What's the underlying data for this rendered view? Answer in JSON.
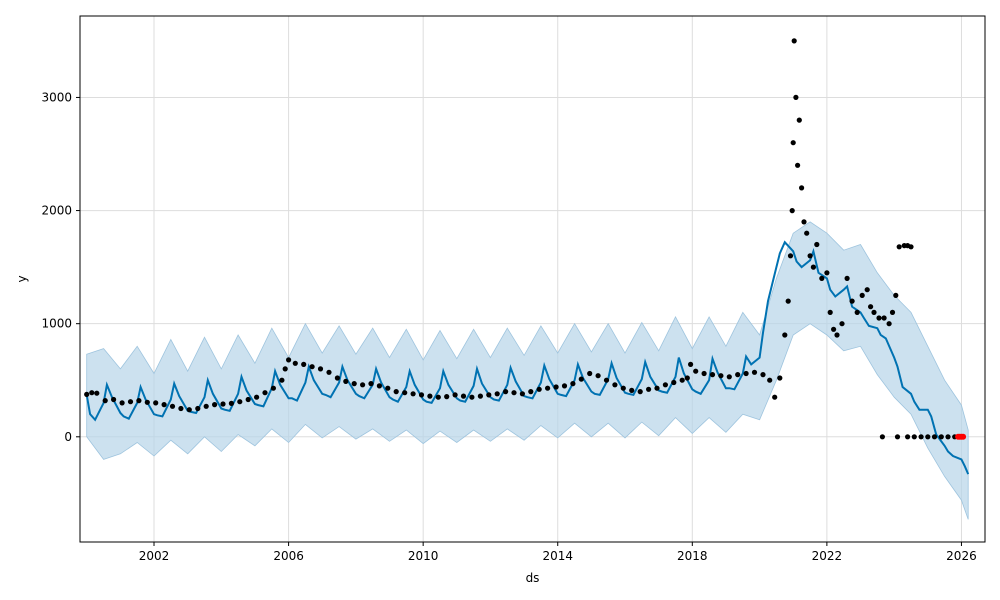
{
  "chart_data": {
    "type": "scatter",
    "title": "",
    "xlabel": "ds",
    "ylabel": "y",
    "xlim": [
      1999.8,
      2026.7
    ],
    "ylim": [
      -930,
      3720
    ],
    "x_ticks": [
      2002,
      2006,
      2010,
      2014,
      2018,
      2022,
      2026
    ],
    "y_ticks": [
      0,
      1000,
      2000,
      3000
    ],
    "grid": true,
    "legend": "none",
    "colors": {
      "observed": "#000000",
      "forecast_line": "#0072B2",
      "interval_fill": "#b6d4e8",
      "interval_edge": "#9ec4de",
      "highlight": "#ff0000",
      "grid": "#dddddd"
    },
    "series": [
      {
        "kind": "observed_points",
        "x": [
          2000.0,
          2000.15,
          2000.3,
          2000.55,
          2000.8,
          2001.05,
          2001.3,
          2001.55,
          2001.8,
          2002.05,
          2002.3,
          2002.55,
          2002.8,
          2003.05,
          2003.3,
          2003.55,
          2003.8,
          2004.05,
          2004.3,
          2004.55,
          2004.8,
          2005.05,
          2005.3,
          2005.55,
          2005.8,
          2005.9,
          2006.0,
          2006.2,
          2006.45,
          2006.7,
          2006.95,
          2007.2,
          2007.45,
          2007.7,
          2007.95,
          2008.2,
          2008.45,
          2008.7,
          2008.95,
          2009.2,
          2009.45,
          2009.7,
          2009.95,
          2010.2,
          2010.45,
          2010.7,
          2010.95,
          2011.2,
          2011.45,
          2011.7,
          2011.95,
          2012.2,
          2012.45,
          2012.7,
          2012.95,
          2013.2,
          2013.45,
          2013.7,
          2013.95,
          2014.2,
          2014.45,
          2014.7,
          2014.95,
          2015.2,
          2015.45,
          2015.7,
          2015.95,
          2016.2,
          2016.45,
          2016.7,
          2016.95,
          2017.2,
          2017.45,
          2017.7,
          2017.85,
          2017.95,
          2018.1,
          2018.35,
          2018.6,
          2018.85,
          2019.1,
          2019.35,
          2019.6,
          2019.85,
          2020.1,
          2020.3,
          2020.45,
          2020.6,
          2020.75,
          2020.85,
          2020.92,
          2020.97,
          2021.0,
          2021.03,
          2021.08,
          2021.13,
          2021.18,
          2021.25,
          2021.32,
          2021.4,
          2021.5,
          2021.6,
          2021.7,
          2021.85,
          2022.0,
          2022.1,
          2022.2,
          2022.3,
          2022.45,
          2022.6,
          2022.75,
          2022.9,
          2023.05,
          2023.2,
          2023.3,
          2023.4,
          2023.55,
          2023.7,
          2023.85,
          2023.95,
          2024.05,
          2024.15,
          2024.3,
          2024.4,
          2024.5,
          2023.65,
          2024.1,
          2024.4,
          2024.6,
          2024.8,
          2025.0,
          2025.2,
          2025.4,
          2025.6,
          2025.8,
          2026.0
        ],
        "y": [
          375,
          390,
          385,
          320,
          330,
          300,
          310,
          320,
          305,
          300,
          285,
          270,
          250,
          240,
          250,
          270,
          285,
          290,
          295,
          310,
          330,
          350,
          390,
          430,
          500,
          600,
          680,
          650,
          640,
          620,
          600,
          570,
          520,
          490,
          470,
          460,
          470,
          450,
          430,
          400,
          390,
          380,
          370,
          360,
          350,
          355,
          370,
          360,
          350,
          360,
          370,
          380,
          400,
          390,
          380,
          400,
          420,
          430,
          440,
          450,
          470,
          510,
          560,
          540,
          500,
          460,
          430,
          410,
          400,
          420,
          430,
          460,
          480,
          500,
          520,
          640,
          580,
          560,
          550,
          540,
          530,
          550,
          560,
          570,
          550,
          500,
          350,
          520,
          900,
          1200,
          1600,
          2000,
          2600,
          3500,
          3000,
          2400,
          2800,
          2200,
          1900,
          1800,
          1600,
          1500,
          1700,
          1400,
          1450,
          1100,
          950,
          900,
          1000,
          1400,
          1200,
          1100,
          1250,
          1300,
          1150,
          1100,
          1050,
          1050,
          1000,
          1100,
          1250,
          1680,
          1690,
          1690,
          1680,
          0,
          0,
          0,
          0,
          0,
          0,
          0,
          0,
          0,
          0,
          0
        ]
      },
      {
        "kind": "forecast_line",
        "x": [
          2000.0,
          2000.1,
          2000.25,
          2000.5,
          2000.6,
          2000.75,
          2001.0,
          2001.1,
          2001.25,
          2001.5,
          2001.6,
          2001.75,
          2002.0,
          2002.1,
          2002.25,
          2002.5,
          2002.6,
          2002.75,
          2003.0,
          2003.1,
          2003.25,
          2003.5,
          2003.6,
          2003.75,
          2004.0,
          2004.1,
          2004.25,
          2004.5,
          2004.6,
          2004.75,
          2005.0,
          2005.1,
          2005.25,
          2005.5,
          2005.6,
          2005.75,
          2006.0,
          2006.1,
          2006.25,
          2006.5,
          2006.6,
          2006.75,
          2007.0,
          2007.1,
          2007.25,
          2007.5,
          2007.6,
          2007.75,
          2008.0,
          2008.1,
          2008.25,
          2008.5,
          2008.6,
          2008.75,
          2009.0,
          2009.1,
          2009.25,
          2009.5,
          2009.6,
          2009.75,
          2010.0,
          2010.1,
          2010.25,
          2010.5,
          2010.6,
          2010.75,
          2011.0,
          2011.1,
          2011.25,
          2011.5,
          2011.6,
          2011.75,
          2012.0,
          2012.1,
          2012.25,
          2012.5,
          2012.6,
          2012.75,
          2013.0,
          2013.1,
          2013.25,
          2013.5,
          2013.6,
          2013.75,
          2014.0,
          2014.1,
          2014.25,
          2014.5,
          2014.6,
          2014.75,
          2015.0,
          2015.1,
          2015.25,
          2015.5,
          2015.6,
          2015.75,
          2016.0,
          2016.1,
          2016.25,
          2016.5,
          2016.6,
          2016.75,
          2017.0,
          2017.1,
          2017.25,
          2017.5,
          2017.6,
          2017.75,
          2018.0,
          2018.1,
          2018.25,
          2018.5,
          2018.6,
          2018.75,
          2019.0,
          2019.1,
          2019.25,
          2019.5,
          2019.6,
          2019.75,
          2020.0,
          2020.1,
          2020.25,
          2020.5,
          2020.6,
          2020.75,
          2021.0,
          2021.1,
          2021.25,
          2021.5,
          2021.6,
          2021.75,
          2022.0,
          2022.1,
          2022.25,
          2022.5,
          2022.6,
          2022.75,
          2023.0,
          2023.1,
          2023.25,
          2023.5,
          2023.6,
          2023.75,
          2024.0,
          2024.1,
          2024.25,
          2024.5,
          2024.6,
          2024.75,
          2025.0,
          2025.1,
          2025.25,
          2025.5,
          2025.6,
          2025.75,
          2026.0,
          2026.1,
          2026.2
        ],
        "y": [
          370,
          200,
          150,
          300,
          460,
          350,
          210,
          180,
          160,
          300,
          440,
          330,
          200,
          190,
          180,
          330,
          470,
          360,
          230,
          220,
          210,
          350,
          500,
          380,
          250,
          240,
          230,
          380,
          530,
          410,
          290,
          280,
          270,
          430,
          580,
          460,
          340,
          340,
          320,
          480,
          620,
          500,
          380,
          370,
          350,
          480,
          620,
          500,
          380,
          360,
          340,
          460,
          600,
          480,
          350,
          330,
          310,
          440,
          580,
          460,
          330,
          310,
          300,
          430,
          580,
          460,
          340,
          320,
          310,
          450,
          600,
          470,
          350,
          330,
          320,
          460,
          610,
          490,
          360,
          350,
          340,
          480,
          630,
          510,
          380,
          370,
          360,
          500,
          640,
          520,
          400,
          380,
          370,
          510,
          650,
          520,
          390,
          380,
          370,
          510,
          660,
          530,
          410,
          400,
          390,
          530,
          700,
          560,
          420,
          400,
          380,
          500,
          690,
          570,
          430,
          430,
          420,
          560,
          710,
          640,
          700,
          920,
          1200,
          1500,
          1620,
          1720,
          1640,
          1550,
          1500,
          1560,
          1640,
          1450,
          1400,
          1300,
          1240,
          1300,
          1330,
          1150,
          1100,
          1050,
          980,
          960,
          900,
          870,
          700,
          620,
          440,
          380,
          310,
          240,
          240,
          180,
          20,
          -80,
          -130,
          -170,
          -200,
          -260,
          -330
        ]
      },
      {
        "kind": "uncertainty_upper",
        "x": [
          2000.0,
          2000.5,
          2001.0,
          2001.5,
          2002.0,
          2002.5,
          2003.0,
          2003.5,
          2004.0,
          2004.5,
          2005.0,
          2005.5,
          2006.0,
          2006.5,
          2007.0,
          2007.5,
          2008.0,
          2008.5,
          2009.0,
          2009.5,
          2010.0,
          2010.5,
          2011.0,
          2011.5,
          2012.0,
          2012.5,
          2013.0,
          2013.5,
          2014.0,
          2014.5,
          2015.0,
          2015.5,
          2016.0,
          2016.5,
          2017.0,
          2017.5,
          2018.0,
          2018.5,
          2019.0,
          2019.5,
          2020.0,
          2020.5,
          2021.0,
          2021.5,
          2022.0,
          2022.5,
          2023.0,
          2023.5,
          2024.0,
          2024.5,
          2025.0,
          2025.5,
          2026.0,
          2026.2
        ],
        "y": [
          730,
          780,
          600,
          800,
          560,
          860,
          580,
          880,
          600,
          900,
          650,
          960,
          700,
          1000,
          740,
          980,
          730,
          960,
          700,
          950,
          680,
          940,
          690,
          950,
          700,
          960,
          720,
          980,
          740,
          1000,
          750,
          1000,
          740,
          1010,
          760,
          1060,
          780,
          1060,
          800,
          1100,
          900,
          1400,
          1800,
          1900,
          1800,
          1650,
          1700,
          1450,
          1250,
          1100,
          800,
          500,
          280,
          60
        ]
      },
      {
        "kind": "uncertainty_lower",
        "x": [
          2000.0,
          2000.5,
          2001.0,
          2001.5,
          2002.0,
          2002.5,
          2003.0,
          2003.5,
          2004.0,
          2004.5,
          2005.0,
          2005.5,
          2006.0,
          2006.5,
          2007.0,
          2007.5,
          2008.0,
          2008.5,
          2009.0,
          2009.5,
          2010.0,
          2010.5,
          2011.0,
          2011.5,
          2012.0,
          2012.5,
          2013.0,
          2013.5,
          2014.0,
          2014.5,
          2015.0,
          2015.5,
          2016.0,
          2016.5,
          2017.0,
          2017.5,
          2018.0,
          2018.5,
          2019.0,
          2019.5,
          2020.0,
          2020.5,
          2021.0,
          2021.5,
          2022.0,
          2022.5,
          2023.0,
          2023.5,
          2024.0,
          2024.5,
          2025.0,
          2025.5,
          2026.0,
          2026.2
        ],
        "y": [
          0,
          -200,
          -150,
          -50,
          -170,
          -30,
          -150,
          0,
          -130,
          20,
          -80,
          70,
          -50,
          110,
          -10,
          90,
          -20,
          70,
          -40,
          60,
          -60,
          50,
          -50,
          60,
          -40,
          70,
          -30,
          100,
          -10,
          120,
          0,
          120,
          -10,
          130,
          10,
          170,
          30,
          170,
          40,
          200,
          150,
          500,
          900,
          1000,
          900,
          760,
          800,
          550,
          350,
          200,
          -100,
          -350,
          -560,
          -730
        ]
      },
      {
        "kind": "highlighted_points",
        "x": [
          2025.9,
          2025.95,
          2026.0,
          2026.05
        ],
        "y": [
          0,
          0,
          0,
          0
        ]
      }
    ]
  }
}
